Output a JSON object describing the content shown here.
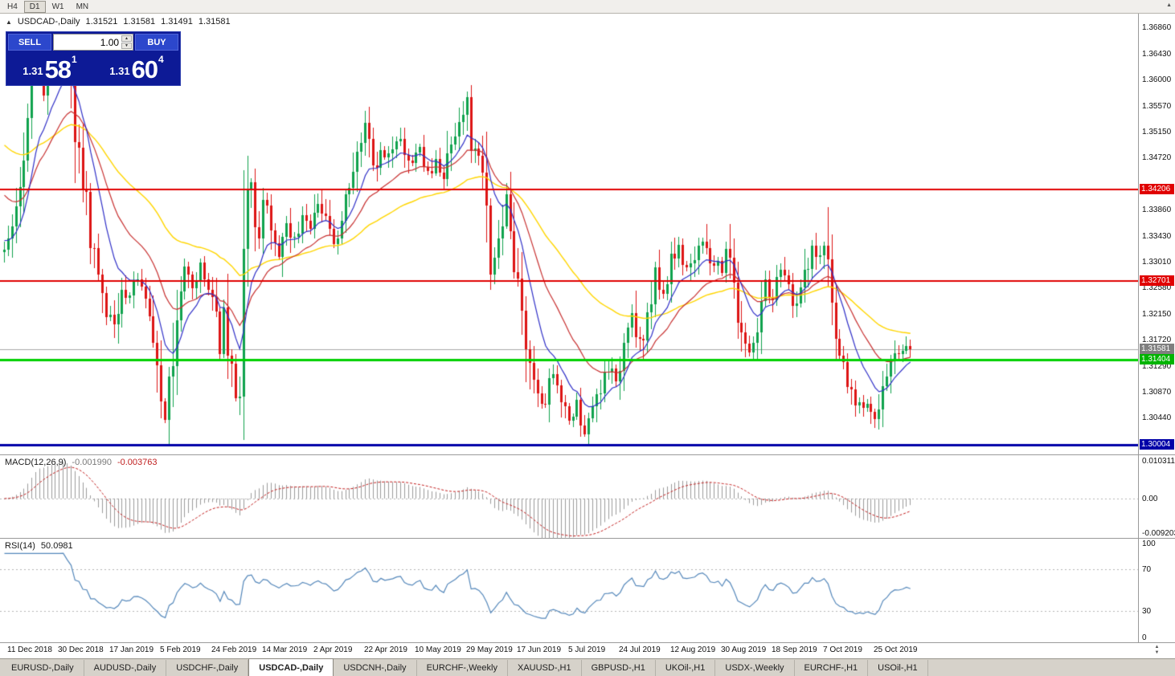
{
  "colors": {
    "candle_up": "#0fa24d",
    "candle_down": "#dd1414",
    "ma_fast": "#3030c8",
    "ma_mid": "#c83030",
    "ma_slow": "#ffd600",
    "macd_hist": "#9b9b9b",
    "macd_signal": "#c42020",
    "rsi_line": "#5588bb",
    "grid_dotted": "#b5b5b5"
  },
  "toolbar": {
    "timeframes": [
      {
        "label": "H4",
        "active": false
      },
      {
        "label": "D1",
        "active": true
      },
      {
        "label": "W1",
        "active": false
      },
      {
        "label": "MN",
        "active": false
      }
    ]
  },
  "scroll": {
    "up": "▲",
    "down": "▼"
  },
  "chart_header": {
    "arrow": "▲",
    "title": "USDCAD-,Daily",
    "open": "1.31521",
    "high": "1.31581",
    "low": "1.31491",
    "close": "1.31581"
  },
  "trade_panel": {
    "sell_label": "SELL",
    "buy_label": "BUY",
    "volume": "1.00",
    "spin_up": "▲",
    "spin_down": "▼",
    "sell_price": {
      "base": "1.31",
      "big": "58",
      "sup": "1"
    },
    "buy_price": {
      "base": "1.31",
      "big": "60",
      "sup": "4"
    }
  },
  "price_axis": {
    "ticks": [
      "1.36860",
      "1.36430",
      "1.36000",
      "1.35570",
      "1.35150",
      "1.34720",
      "1.33860",
      "1.33430",
      "1.33010",
      "1.32580",
      "1.32150",
      "1.31720",
      "1.31290",
      "1.30870",
      "1.30440"
    ],
    "special_labels": [
      {
        "text": "1.34206",
        "price": 1.34206,
        "color": "#e00000"
      },
      {
        "text": "1.32701",
        "price": 1.32701,
        "color": "#e00000"
      },
      {
        "text": "1.31581",
        "price": 1.31581,
        "color": "#7f7f7f"
      },
      {
        "text": "1.31404",
        "price": 1.31404,
        "color": "#00b400"
      },
      {
        "text": "1.30004",
        "price": 1.30004,
        "color": "#0000a8"
      }
    ]
  },
  "hlines": [
    {
      "price": 1.31581,
      "color": "#a8a8a8",
      "width": 1,
      "under": true
    },
    {
      "price": 1.34206,
      "color": "#e00000",
      "width": 2,
      "under": false
    },
    {
      "price": 1.32701,
      "color": "#e00000",
      "width": 2,
      "under": false
    },
    {
      "price": 1.31404,
      "color": "#00d000",
      "width": 3,
      "under": false
    },
    {
      "price": 1.30004,
      "color": "#0000a8",
      "width": 3,
      "under": false
    }
  ],
  "chart_data": {
    "type": "candlestick",
    "symbol": "USDCAD",
    "timeframe": "Daily",
    "candle_count": 232,
    "x_start": 4,
    "x_step": 4.88,
    "ylim": [
      1.2985,
      1.371
    ],
    "last_close": 1.31581,
    "anchors": [
      [
        0,
        1.333
      ],
      [
        2,
        1.3355
      ],
      [
        4,
        1.342
      ],
      [
        6,
        1.356
      ],
      [
        8,
        1.3645
      ],
      [
        10,
        1.358
      ],
      [
        12,
        1.3635
      ],
      [
        15,
        1.3655
      ],
      [
        17,
        1.362
      ],
      [
        18,
        1.351
      ],
      [
        20,
        1.3445
      ],
      [
        22,
        1.334
      ],
      [
        24,
        1.3285
      ],
      [
        26,
        1.322
      ],
      [
        28,
        1.32
      ],
      [
        30,
        1.3265
      ],
      [
        32,
        1.324
      ],
      [
        34,
        1.3275
      ],
      [
        36,
        1.325
      ],
      [
        38,
        1.318
      ],
      [
        40,
        1.3095
      ],
      [
        41,
        1.305
      ],
      [
        42,
        1.3085
      ],
      [
        44,
        1.3225
      ],
      [
        46,
        1.3285
      ],
      [
        48,
        1.3255
      ],
      [
        50,
        1.3305
      ],
      [
        52,
        1.3245
      ],
      [
        54,
        1.3215
      ],
      [
        55,
        1.3155
      ],
      [
        56,
        1.3225
      ],
      [
        57,
        1.3155
      ],
      [
        58,
        1.312
      ],
      [
        59,
        1.3075
      ],
      [
        60,
        1.3135
      ],
      [
        61,
        1.332
      ],
      [
        62,
        1.3425
      ],
      [
        63,
        1.3445
      ],
      [
        64,
        1.3385
      ],
      [
        65,
        1.3345
      ],
      [
        66,
        1.342
      ],
      [
        68,
        1.3365
      ],
      [
        70,
        1.3315
      ],
      [
        72,
        1.3365
      ],
      [
        74,
        1.3335
      ],
      [
        76,
        1.3385
      ],
      [
        78,
        1.3355
      ],
      [
        80,
        1.3395
      ],
      [
        82,
        1.3365
      ],
      [
        84,
        1.3325
      ],
      [
        86,
        1.3385
      ],
      [
        88,
        1.3415
      ],
      [
        90,
        1.3485
      ],
      [
        92,
        1.352
      ],
      [
        94,
        1.3455
      ],
      [
        96,
        1.3485
      ],
      [
        98,
        1.3475
      ],
      [
        100,
        1.3505
      ],
      [
        102,
        1.3485
      ],
      [
        104,
        1.3465
      ],
      [
        106,
        1.3485
      ],
      [
        108,
        1.3445
      ],
      [
        110,
        1.3465
      ],
      [
        112,
        1.3445
      ],
      [
        114,
        1.3505
      ],
      [
        116,
        1.3535
      ],
      [
        118,
        1.356
      ],
      [
        119,
        1.3505
      ],
      [
        120,
        1.3485
      ],
      [
        122,
        1.3445
      ],
      [
        124,
        1.3285
      ],
      [
        126,
        1.3325
      ],
      [
        128,
        1.3405
      ],
      [
        130,
        1.3285
      ],
      [
        132,
        1.3225
      ],
      [
        134,
        1.3125
      ],
      [
        136,
        1.3085
      ],
      [
        138,
        1.3065
      ],
      [
        140,
        1.3125
      ],
      [
        142,
        1.3075
      ],
      [
        144,
        1.3045
      ],
      [
        146,
        1.3065
      ],
      [
        148,
        1.3025
      ],
      [
        150,
        1.3055
      ],
      [
        152,
        1.3085
      ],
      [
        154,
        1.3125
      ],
      [
        156,
        1.3105
      ],
      [
        157,
        1.3145
      ],
      [
        158,
        1.3185
      ],
      [
        160,
        1.3225
      ],
      [
        162,
        1.3165
      ],
      [
        164,
        1.3205
      ],
      [
        166,
        1.3285
      ],
      [
        168,
        1.3245
      ],
      [
        170,
        1.3305
      ],
      [
        172,
        1.3335
      ],
      [
        174,
        1.3285
      ],
      [
        176,
        1.3315
      ],
      [
        178,
        1.3345
      ],
      [
        180,
        1.3295
      ],
      [
        182,
        1.3315
      ],
      [
        183,
        1.3285
      ],
      [
        184,
        1.3325
      ],
      [
        186,
        1.3255
      ],
      [
        188,
        1.3185
      ],
      [
        190,
        1.3145
      ],
      [
        192,
        1.3205
      ],
      [
        194,
        1.3265
      ],
      [
        196,
        1.3235
      ],
      [
        198,
        1.3285
      ],
      [
        200,
        1.3255
      ],
      [
        202,
        1.3225
      ],
      [
        204,
        1.3285
      ],
      [
        206,
        1.3325
      ],
      [
        208,
        1.3305
      ],
      [
        209,
        1.3335
      ],
      [
        210,
        1.3285
      ],
      [
        211,
        1.3205
      ],
      [
        212,
        1.3165
      ],
      [
        214,
        1.3125
      ],
      [
        216,
        1.3085
      ],
      [
        218,
        1.3065
      ],
      [
        220,
        1.3062
      ],
      [
        222,
        1.3048
      ],
      [
        224,
        1.3085
      ],
      [
        226,
        1.3135
      ],
      [
        228,
        1.3158
      ],
      [
        231,
        1.3158
      ]
    ],
    "ma": [
      {
        "name": "slow-ma",
        "period": 55,
        "seed": 1.35,
        "color": "#ffd600",
        "width": 1.4
      },
      {
        "name": "mid-ma",
        "period": 22,
        "seed": 1.342,
        "color": "#c83030",
        "width": 1.2
      },
      {
        "name": "fast-ma",
        "period": 10,
        "seed": 1.334,
        "color": "#3030c8",
        "width": 1.2
      }
    ]
  },
  "macd_panel": {
    "label": "MACD(12,26,9)",
    "value_main": "-0.001990",
    "value_signal": "-0.003763",
    "ylim": [
      -0.009203,
      0.010311
    ],
    "axis": [
      {
        "text": "0.010311",
        "v": 0.010311
      },
      {
        "text": "0.00",
        "v": 0
      },
      {
        "text": "-0.009203",
        "v": -0.009203
      }
    ]
  },
  "rsi_panel": {
    "label": "RSI(14)",
    "value": "50.0981",
    "levels": [
      70,
      30
    ],
    "axis": [
      {
        "text": "100",
        "v": 100
      },
      {
        "text": "70",
        "v": 70
      },
      {
        "text": "30",
        "v": 30
      },
      {
        "text": "0",
        "v": 0
      }
    ]
  },
  "date_axis": [
    {
      "label": "11 Dec 2018",
      "i": 1
    },
    {
      "label": "30 Dec 2018",
      "i": 14
    },
    {
      "label": "17 Jan 2019",
      "i": 27
    },
    {
      "label": "5 Feb 2019",
      "i": 40
    },
    {
      "label": "24 Feb 2019",
      "i": 53
    },
    {
      "label": "14 Mar 2019",
      "i": 66
    },
    {
      "label": "2 Apr 2019",
      "i": 79
    },
    {
      "label": "22 Apr 2019",
      "i": 92
    },
    {
      "label": "10 May 2019",
      "i": 105
    },
    {
      "label": "29 May 2019",
      "i": 118
    },
    {
      "label": "17 Jun 2019",
      "i": 131
    },
    {
      "label": "5 Jul 2019",
      "i": 144
    },
    {
      "label": "24 Jul 2019",
      "i": 157
    },
    {
      "label": "12 Aug 2019",
      "i": 170
    },
    {
      "label": "30 Aug 2019",
      "i": 183
    },
    {
      "label": "18 Sep 2019",
      "i": 196
    },
    {
      "label": "7 Oct 2019",
      "i": 209
    },
    {
      "label": "25 Oct 2019",
      "i": 222
    }
  ],
  "tabs": [
    {
      "label": "EURUSD-,Daily",
      "active": false
    },
    {
      "label": "AUDUSD-,Daily",
      "active": false
    },
    {
      "label": "USDCHF-,Daily",
      "active": false
    },
    {
      "label": "USDCAD-,Daily",
      "active": true
    },
    {
      "label": "USDCNH-,Daily",
      "active": false
    },
    {
      "label": "EURCHF-,Weekly",
      "active": false
    },
    {
      "label": "XAUUSD-,H1",
      "active": false
    },
    {
      "label": "GBPUSD-,H1",
      "active": false
    },
    {
      "label": "UKOil-,H1",
      "active": false
    },
    {
      "label": "USDX-,Weekly",
      "active": false
    },
    {
      "label": "EURCHF-,H1",
      "active": false
    },
    {
      "label": "USOil-,H1",
      "active": false
    }
  ]
}
